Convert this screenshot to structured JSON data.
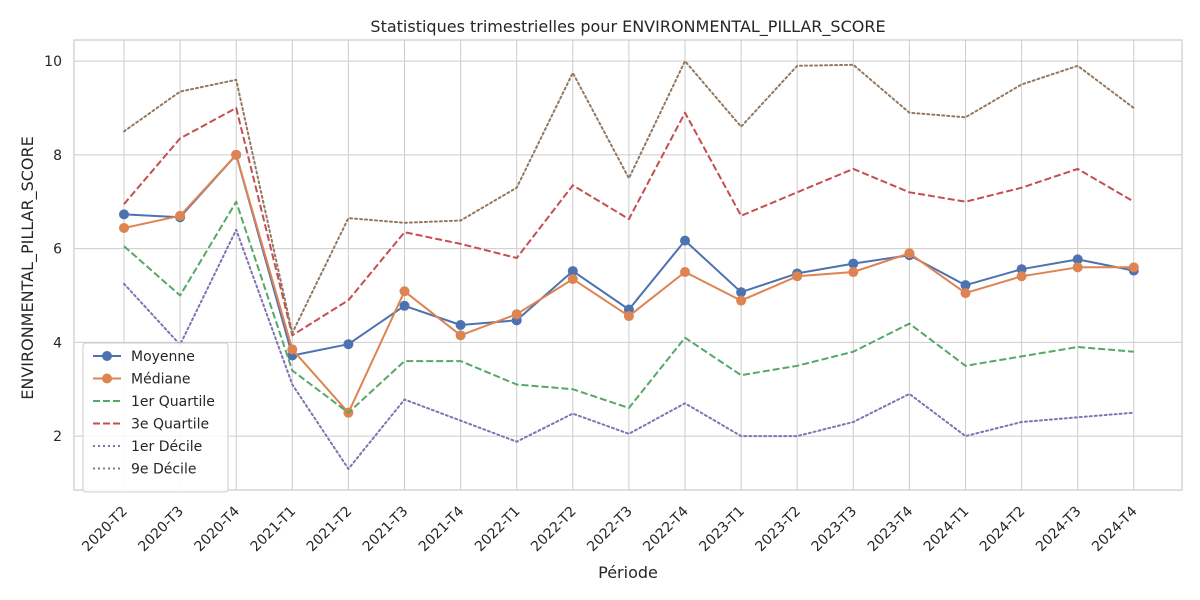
{
  "chart_data": {
    "type": "line",
    "title": "Statistiques trimestrielles pour ENVIRONMENTAL_PILLAR_SCORE",
    "xlabel": "Période",
    "ylabel": "ENVIRONMENTAL_PILLAR_SCORE",
    "ylim": [
      0.85,
      10.45
    ],
    "yticks": [
      2,
      4,
      6,
      8,
      10
    ],
    "grid": true,
    "legend_position": "lower-left",
    "categories": [
      "2020-T2",
      "2020-T3",
      "2020-T4",
      "2021-T1",
      "2021-T2",
      "2021-T3",
      "2021-T4",
      "2022-T1",
      "2022-T2",
      "2022-T3",
      "2022-T4",
      "2023-T1",
      "2023-T2",
      "2023-T3",
      "2023-T4",
      "2024-T1",
      "2024-T2",
      "2024-T3",
      "2024-T4"
    ],
    "series": [
      {
        "name": "Moyenne",
        "color": "#4c72b0",
        "style": "solid",
        "marker": true,
        "values": [
          6.73,
          6.67,
          8.0,
          3.72,
          3.96,
          4.78,
          4.37,
          4.47,
          5.52,
          4.7,
          6.17,
          5.07,
          5.47,
          5.68,
          5.86,
          5.22,
          5.56,
          5.77,
          5.53
        ]
      },
      {
        "name": "Médiane",
        "color": "#dd8452",
        "style": "solid",
        "marker": true,
        "values": [
          6.44,
          6.7,
          8.0,
          3.85,
          2.5,
          5.09,
          4.15,
          4.6,
          5.35,
          4.56,
          5.5,
          4.89,
          5.41,
          5.5,
          5.9,
          5.05,
          5.41,
          5.6,
          5.6
        ]
      },
      {
        "name": "1er Quartile",
        "color": "#55a868",
        "style": "dashed",
        "marker": false,
        "values": [
          6.05,
          5.0,
          7.0,
          3.4,
          2.5,
          3.6,
          3.6,
          3.1,
          3.0,
          2.6,
          4.1,
          3.3,
          3.5,
          3.8,
          4.4,
          3.5,
          3.7,
          3.9,
          3.8
        ]
      },
      {
        "name": "3e Quartile",
        "color": "#c44e52",
        "style": "dashed",
        "marker": false,
        "values": [
          6.95,
          8.35,
          9.0,
          4.15,
          4.9,
          6.35,
          6.1,
          5.8,
          7.35,
          6.63,
          8.9,
          6.7,
          7.2,
          7.7,
          7.2,
          7.0,
          7.3,
          7.7,
          7.0
        ]
      },
      {
        "name": "1er Décile",
        "color": "#8172b3",
        "style": "dotted",
        "marker": false,
        "values": [
          5.25,
          3.95,
          6.4,
          3.1,
          1.3,
          2.78,
          2.33,
          1.88,
          2.48,
          2.05,
          2.7,
          2.0,
          2.0,
          2.3,
          2.9,
          2.0,
          2.3,
          2.4,
          2.5
        ]
      },
      {
        "name": "9e Décile",
        "color": "#937860",
        "style": "dotted",
        "marker": false,
        "values": [
          8.5,
          9.35,
          9.6,
          4.2,
          6.65,
          6.55,
          6.6,
          7.3,
          9.75,
          7.5,
          10.0,
          8.6,
          9.9,
          9.92,
          8.9,
          8.8,
          9.5,
          9.9,
          9.0
        ]
      }
    ]
  }
}
